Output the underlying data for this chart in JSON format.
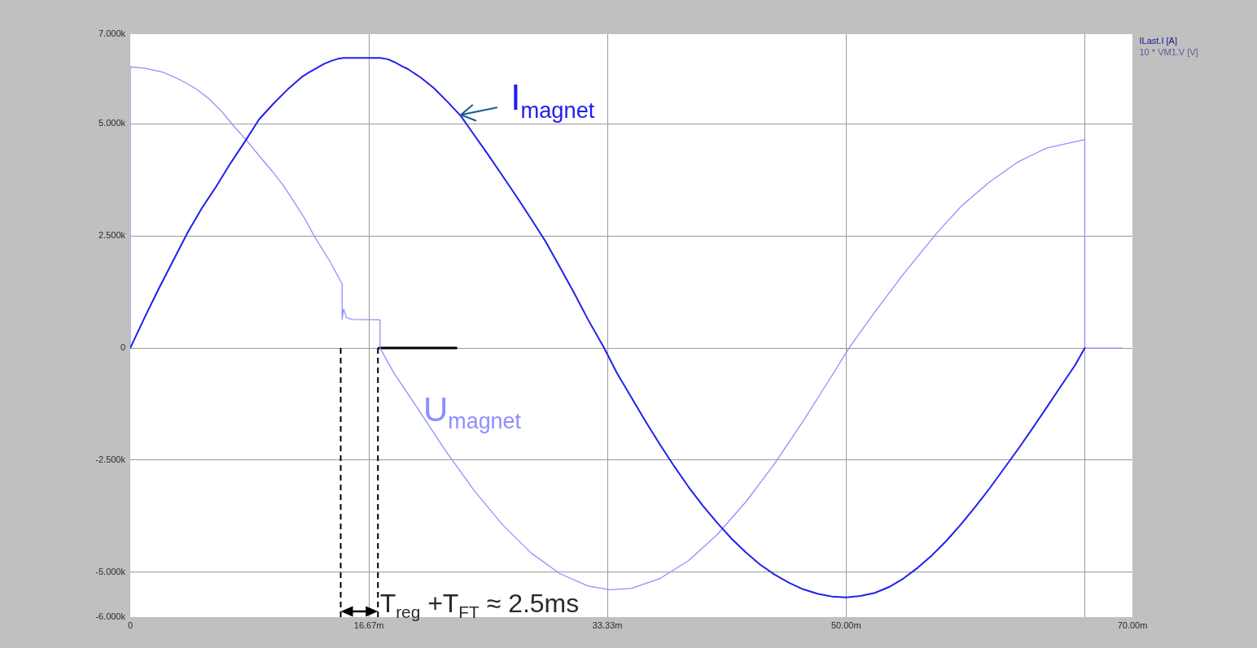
{
  "chart_data": {
    "type": "line",
    "xlim": [
      0,
      70
    ],
    "xticks": [
      0,
      {
        "value": 16.67,
        "label": "16.67m"
      },
      {
        "value": 33.33,
        "label": "33.33m"
      },
      {
        "value": 50,
        "label": "50.00m"
      },
      {
        "value": 66.67,
        "label": null
      },
      {
        "value": 70,
        "label": "70.00m"
      }
    ],
    "ylim": [
      -6000,
      7000
    ],
    "yticks": [
      {
        "value": 7000,
        "label": "7.000k"
      },
      {
        "value": 5000,
        "label": "5.000k"
      },
      {
        "value": 2500,
        "label": "2.500k"
      },
      0,
      {
        "value": -2500,
        "label": "-2.500k"
      },
      {
        "value": -5000,
        "label": "-5.000k"
      },
      {
        "value": -6000,
        "label": "-6.000k"
      }
    ],
    "grid": true,
    "legend": "top right",
    "series": [
      {
        "name": "ILast.I [A]",
        "color": "#2020ee",
        "x": [
          0,
          1,
          2,
          3,
          4,
          5,
          6,
          7,
          8,
          9,
          10,
          11,
          12,
          12.5,
          13,
          13.5,
          14,
          14.5,
          14.9,
          17.45,
          18,
          18.5,
          19,
          19.4,
          20.3,
          21.2,
          22.2,
          23.1,
          24,
          25,
          26,
          27,
          28,
          29,
          30,
          31,
          32,
          33.1,
          34,
          35,
          36,
          37,
          38,
          39,
          40,
          41,
          42,
          43,
          44,
          45,
          46,
          47,
          48,
          49,
          50,
          51,
          52,
          53,
          54,
          55,
          56,
          57,
          58,
          59,
          60,
          61,
          62,
          63,
          64,
          65,
          66,
          66.67
        ],
        "values": [
          0,
          680,
          1330,
          1950,
          2570,
          3120,
          3600,
          4120,
          4600,
          5100,
          5450,
          5770,
          6050,
          6150,
          6240,
          6330,
          6400,
          6450,
          6470,
          6470,
          6440,
          6370,
          6280,
          6220,
          6030,
          5800,
          5480,
          5170,
          4760,
          4310,
          3840,
          3370,
          2880,
          2380,
          1810,
          1230,
          620,
          0,
          -560,
          -1100,
          -1640,
          -2150,
          -2640,
          -3100,
          -3520,
          -3900,
          -4250,
          -4560,
          -4830,
          -5050,
          -5230,
          -5380,
          -5480,
          -5540,
          -5560,
          -5530,
          -5460,
          -5330,
          -5140,
          -4900,
          -4620,
          -4300,
          -3940,
          -3550,
          -3140,
          -2700,
          -2260,
          -1800,
          -1330,
          -850,
          -380,
          0
        ]
      },
      {
        "name": "10 * VM1.V [V]",
        "color": "#8f8fff",
        "x": [
          0,
          0,
          1,
          2.3,
          3.5,
          4.55,
          5.5,
          6.4,
          7.2,
          8.1,
          9,
          9.9,
          10.7,
          11.4,
          12.2,
          12.9,
          13.9,
          14.8,
          14.8,
          14.9,
          15.1,
          15.5,
          17.45,
          17.45,
          18.4,
          20,
          22,
          24,
          26,
          28,
          30,
          32,
          33.5,
          35,
          37,
          39,
          41,
          43,
          45,
          47,
          49,
          50.2,
          52,
          54,
          56.3,
          58,
          60,
          62,
          64,
          66.67,
          66.67,
          69.3
        ],
        "values": [
          0,
          6270,
          6240,
          6150,
          5980,
          5790,
          5560,
          5270,
          4960,
          4640,
          4290,
          3950,
          3620,
          3280,
          2880,
          2470,
          1960,
          1430,
          640,
          870,
          680,
          640,
          630,
          0,
          -550,
          -1310,
          -2280,
          -3170,
          -3940,
          -4570,
          -5030,
          -5310,
          -5390,
          -5360,
          -5140,
          -4740,
          -4160,
          -3430,
          -2580,
          -1630,
          -620,
          0,
          800,
          1650,
          2550,
          3150,
          3700,
          4150,
          4460,
          4650,
          0,
          0
        ]
      },
      {
        "color": "#000000",
        "line_style": "dashed",
        "x": [
          14.7,
          14.7
        ],
        "values": [
          0,
          -6000
        ]
      },
      {
        "color": "#000000",
        "line_style": "dashed",
        "x": [
          17.3,
          17.3
        ],
        "values": [
          0,
          -6000
        ]
      },
      {
        "color": "#000000",
        "x": [
          17.36,
          22.77
        ],
        "values": [
          0,
          0
        ]
      }
    ],
    "annotations": [
      {
        "text": "I$_{magnet}$",
        "x": 23.1,
        "y": 5200
      },
      "U$_{magnet}$",
      {
        "text": "T$_{reg}$ +T$_{FT}$ ≈ 2.5ms",
        "x": 17.38,
        "y": -5900
      }
    ]
  }
}
